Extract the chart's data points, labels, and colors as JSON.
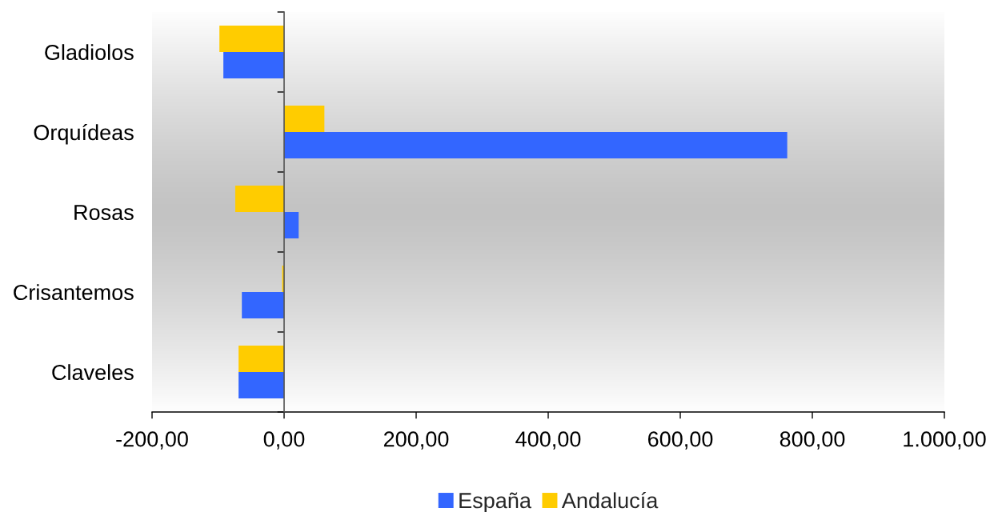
{
  "chart_data": {
    "type": "bar",
    "orientation": "horizontal",
    "categories": [
      "Gladiolos",
      "Orquídeas",
      "Rosas",
      "Crisantemos",
      "Claveles"
    ],
    "series": [
      {
        "name": "España",
        "color": "#3366ff",
        "values": [
          -92,
          762,
          22,
          -64,
          -69
        ]
      },
      {
        "name": "Andalucía",
        "color": "#ffcc00",
        "values": [
          -98,
          61,
          -74,
          -3,
          -69
        ]
      }
    ],
    "xlim": [
      -200,
      1000
    ],
    "xticks": [
      {
        "value": -200,
        "label": "-200,00"
      },
      {
        "value": 0,
        "label": "0,00"
      },
      {
        "value": 200,
        "label": "200,00"
      },
      {
        "value": 400,
        "label": "400,00"
      },
      {
        "value": 600,
        "label": "600,00"
      },
      {
        "value": 800,
        "label": "800,00"
      },
      {
        "value": 1000,
        "label": "1.000,00"
      }
    ],
    "legend": "bottom"
  }
}
